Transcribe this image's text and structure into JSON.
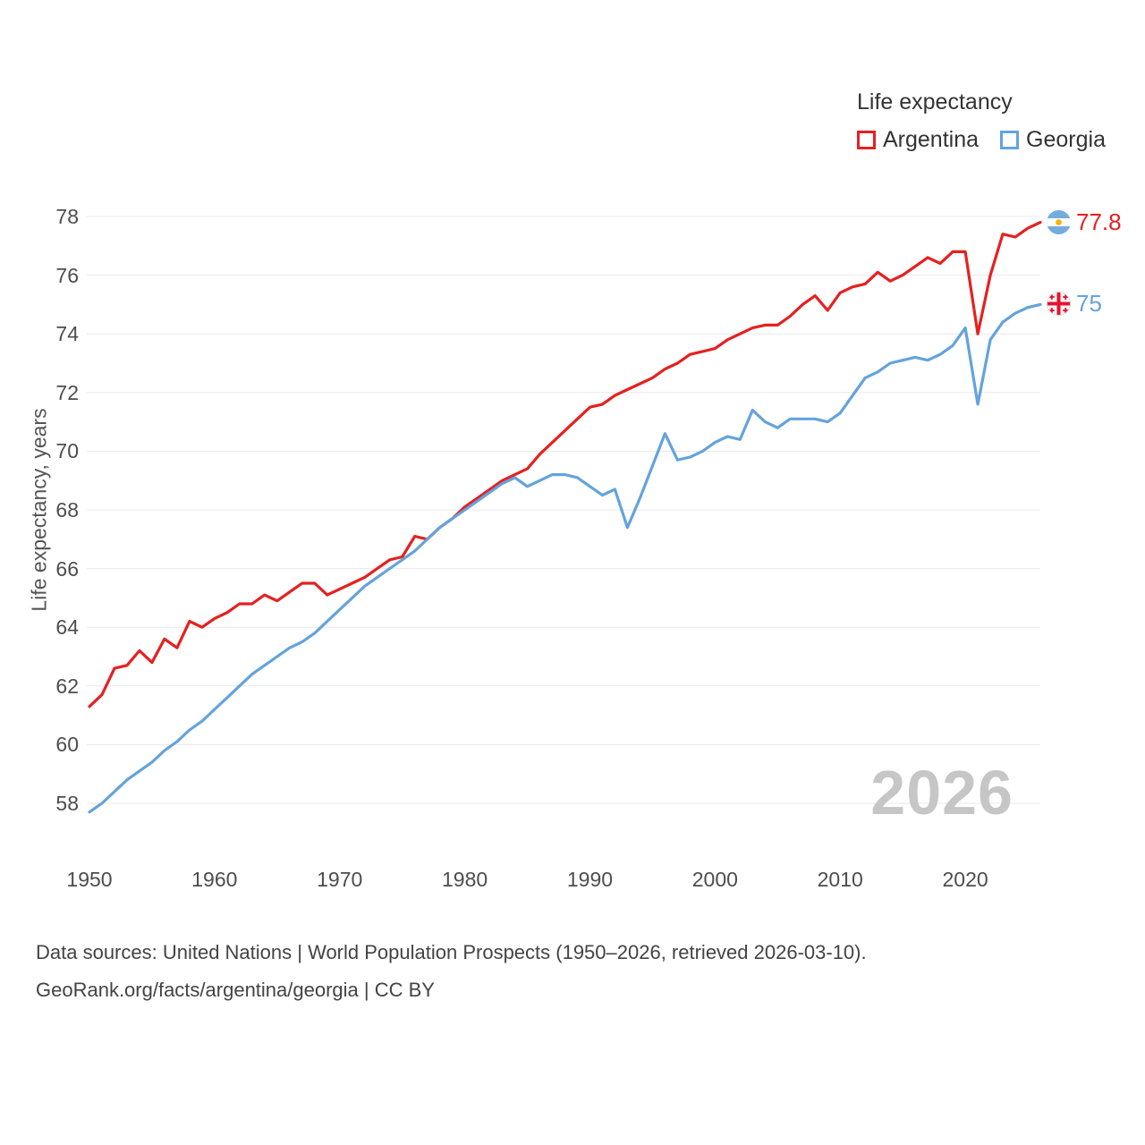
{
  "watermark": "2026",
  "footer": {
    "line1": "Data sources: United Nations | World Population Prospects (1950–2026, retrieved 2026-03-10).",
    "line2": "GeoRank.org/facts/argentina/georgia | CC BY"
  },
  "chart_data": {
    "type": "line",
    "title": "Life expectancy",
    "grid": "horizontal",
    "legend_position": "top-right",
    "x": {
      "start": 1950,
      "end": 2026,
      "step": 1,
      "ticks": [
        1950,
        1960,
        1970,
        1980,
        1990,
        2000,
        2010,
        2020
      ]
    },
    "y": {
      "label": "Life expectancy, years",
      "lim": [
        58,
        78
      ],
      "ticks": [
        58,
        60,
        62,
        64,
        66,
        68,
        70,
        72,
        74,
        76,
        78
      ]
    },
    "series": [
      {
        "name": "Argentina",
        "color": "#e62020",
        "end_label": "77.8",
        "flag": "argentina-flag",
        "values": [
          61.3,
          61.7,
          62.6,
          62.7,
          63.2,
          62.8,
          63.6,
          63.3,
          64.2,
          64.0,
          64.3,
          64.5,
          64.8,
          64.8,
          65.1,
          64.9,
          65.2,
          65.5,
          65.5,
          65.1,
          65.3,
          65.5,
          65.7,
          66.0,
          66.3,
          66.4,
          67.1,
          67.0,
          67.4,
          67.7,
          68.1,
          68.4,
          68.7,
          69.0,
          69.2,
          69.4,
          69.9,
          70.3,
          70.7,
          71.1,
          71.5,
          71.6,
          71.9,
          72.1,
          72.3,
          72.5,
          72.8,
          73.0,
          73.3,
          73.4,
          73.5,
          73.8,
          74.0,
          74.2,
          74.3,
          74.3,
          74.6,
          75.0,
          75.3,
          74.8,
          75.4,
          75.6,
          75.7,
          76.1,
          75.8,
          76.0,
          76.3,
          76.6,
          76.4,
          76.8,
          76.8,
          74.0,
          76.0,
          77.4,
          77.3,
          77.6,
          77.8
        ]
      },
      {
        "name": "Georgia",
        "color": "#64a3dc",
        "end_label": "75",
        "flag": "georgia-flag",
        "values": [
          57.7,
          58.0,
          58.4,
          58.8,
          59.1,
          59.4,
          59.8,
          60.1,
          60.5,
          60.8,
          61.2,
          61.6,
          62.0,
          62.4,
          62.7,
          63.0,
          63.3,
          63.5,
          63.8,
          64.2,
          64.6,
          65.0,
          65.4,
          65.7,
          66.0,
          66.3,
          66.6,
          67.0,
          67.4,
          67.7,
          68.0,
          68.3,
          68.6,
          68.9,
          69.1,
          68.8,
          69.0,
          69.2,
          69.2,
          69.1,
          68.8,
          68.5,
          68.7,
          67.4,
          68.4,
          69.5,
          70.6,
          69.7,
          69.8,
          70.0,
          70.3,
          70.5,
          70.4,
          71.4,
          71.0,
          70.8,
          71.1,
          71.1,
          71.1,
          71.0,
          71.3,
          71.9,
          72.5,
          72.7,
          73.0,
          73.1,
          73.2,
          73.1,
          73.3,
          73.6,
          74.2,
          71.6,
          73.8,
          74.4,
          74.7,
          74.9,
          75.0
        ]
      }
    ]
  }
}
